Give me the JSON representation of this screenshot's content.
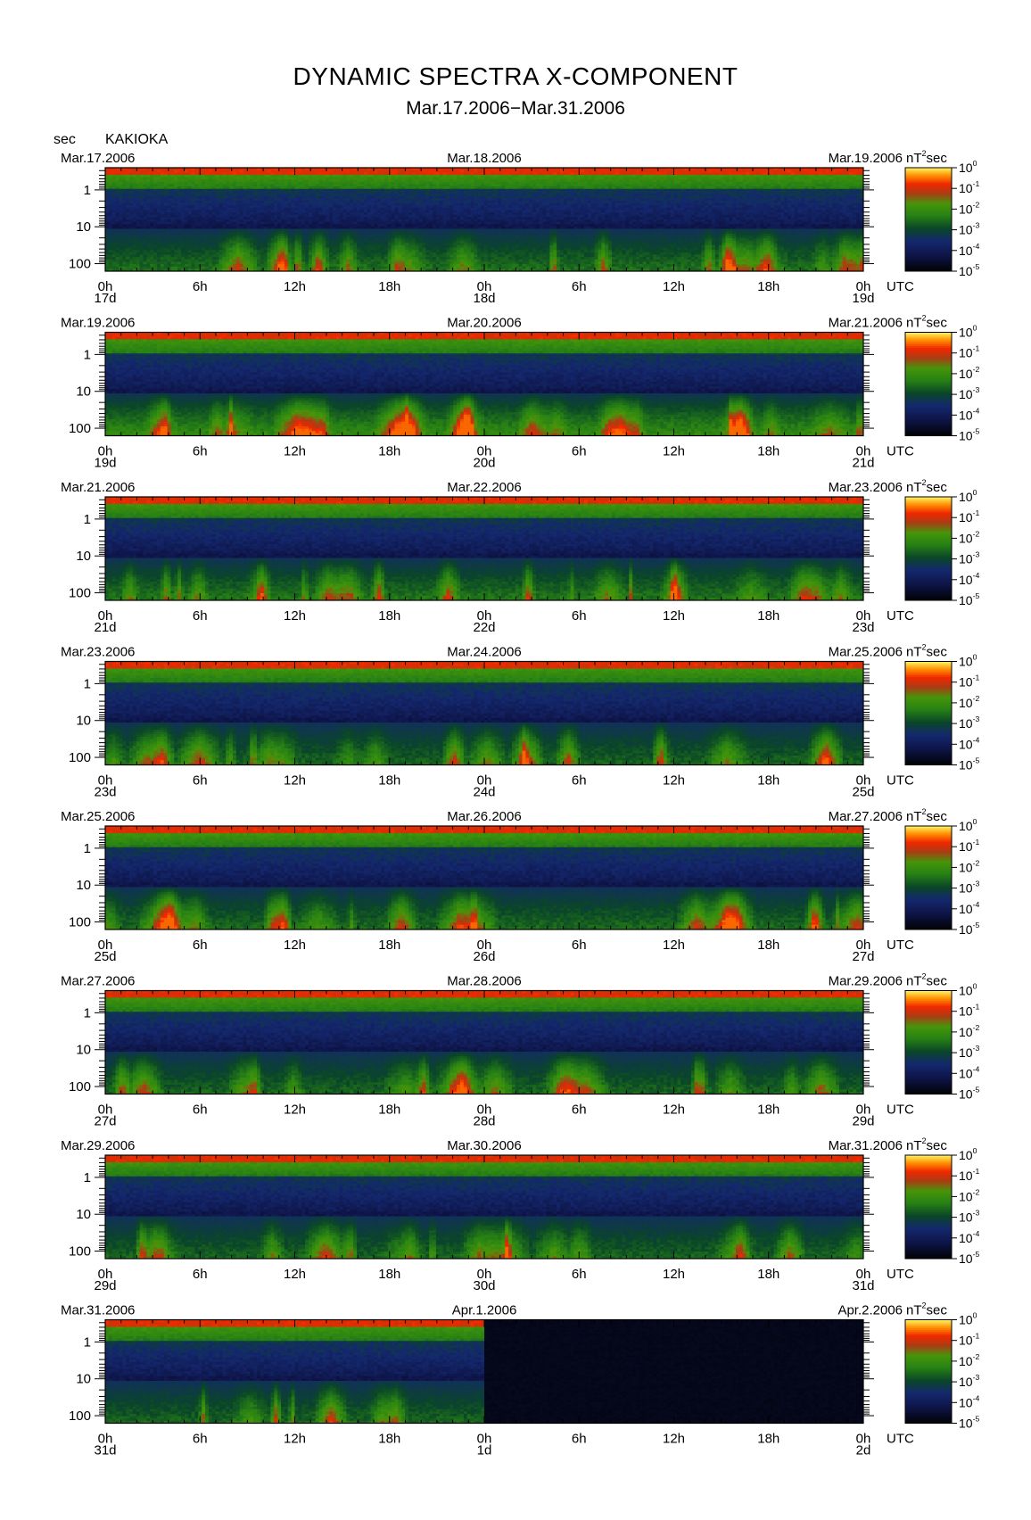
{
  "title": "DYNAMIC SPECTRA X-COMPONENT",
  "subtitle": "Mar.17.2006−Mar.31.2006",
  "station": "KAKIOKA",
  "y_unit": "sec",
  "colorbar_unit_base": "nT",
  "colorbar_unit_exp": "2",
  "colorbar_unit_tail": "sec",
  "chart_data": {
    "type": "heatmap",
    "ylabel": "sec",
    "xlabel": "UTC",
    "y_axis": {
      "scale": "log",
      "inverted": true,
      "tick_labels": [
        "1",
        "10",
        "100"
      ]
    },
    "x_hour_labels": [
      "0h",
      "6h",
      "12h",
      "18h",
      "0h",
      "6h",
      "12h",
      "18h",
      "0h"
    ],
    "x_unit_label": "UTC",
    "colorbar": {
      "labels": [
        {
          "base": "10",
          "exp": "0"
        },
        {
          "base": "10",
          "exp": "-1"
        },
        {
          "base": "10",
          "exp": "-2"
        },
        {
          "base": "10",
          "exp": "-3"
        },
        {
          "base": "10",
          "exp": "-4"
        },
        {
          "base": "10",
          "exp": "-5"
        }
      ],
      "colors": [
        "#fff8a0",
        "#ffd800",
        "#ff8800",
        "#ff2a00",
        "#c02010",
        "#1a6a00",
        "#3fa010",
        "#105a20",
        "#0a1a50",
        "#000000"
      ]
    },
    "panels": [
      {
        "top_left": "Mar.17.2006",
        "top_mid": "Mar.18.2006",
        "top_right": "Mar.19.2006",
        "day_labels": [
          "17d",
          "18d",
          "19d"
        ],
        "activity": 0.55,
        "data_extent": 1.0
      },
      {
        "top_left": "Mar.19.2006",
        "top_mid": "Mar.20.2006",
        "top_right": "Mar.21.2006",
        "day_labels": [
          "19d",
          "20d",
          "21d"
        ],
        "activity": 0.85,
        "data_extent": 1.0
      },
      {
        "top_left": "Mar.21.2006",
        "top_mid": "Mar.22.2006",
        "top_right": "Mar.23.2006",
        "day_labels": [
          "21d",
          "22d",
          "23d"
        ],
        "activity": 0.6,
        "data_extent": 1.0
      },
      {
        "top_left": "Mar.23.2006",
        "top_mid": "Mar.24.2006",
        "top_right": "Mar.25.2006",
        "day_labels": [
          "23d",
          "24d",
          "25d"
        ],
        "activity": 0.45,
        "data_extent": 1.0
      },
      {
        "top_left": "Mar.25.2006",
        "top_mid": "Mar.26.2006",
        "top_right": "Mar.27.2006",
        "day_labels": [
          "25d",
          "26d",
          "27d"
        ],
        "activity": 0.5,
        "data_extent": 1.0
      },
      {
        "top_left": "Mar.27.2006",
        "top_mid": "Mar.28.2006",
        "top_right": "Mar.29.2006",
        "day_labels": [
          "27d",
          "28d",
          "29d"
        ],
        "activity": 0.45,
        "data_extent": 1.0
      },
      {
        "top_left": "Mar.29.2006",
        "top_mid": "Mar.30.2006",
        "top_right": "Mar.31.2006",
        "day_labels": [
          "29d",
          "30d",
          "31d"
        ],
        "activity": 0.45,
        "data_extent": 1.0
      },
      {
        "top_left": "Mar.31.2006",
        "top_mid": "Apr.1.2006",
        "top_right": "Apr.2.2006",
        "day_labels": [
          "31d",
          "1d",
          "2d"
        ],
        "activity": 0.45,
        "data_extent": 0.5
      }
    ]
  }
}
